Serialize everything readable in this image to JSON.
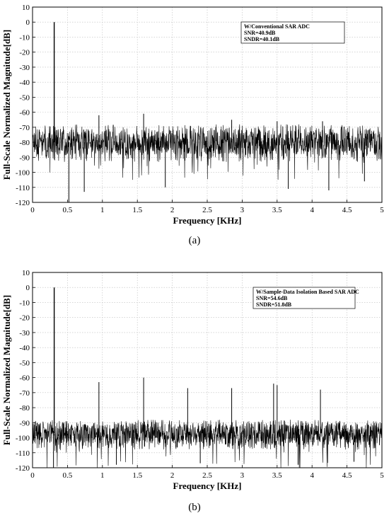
{
  "panels": [
    {
      "caption": "(a)",
      "legend_lines": [
        "W/Conventional SAR ADC",
        "SNR=40.9dB",
        "SNDR=40.1dB"
      ],
      "chart_data": {
        "type": "line",
        "xlabel": "Frequency [KHz]",
        "ylabel": "Full-Scale Normalized Magnitude[dB]",
        "xlim": [
          0,
          5
        ],
        "ylim": [
          -120,
          10
        ],
        "xticks": [
          0,
          0.5,
          1,
          1.5,
          2,
          2.5,
          3,
          3.5,
          4,
          4.5,
          5
        ],
        "yticks": [
          10,
          0,
          -10,
          -20,
          -30,
          -40,
          -50,
          -60,
          -70,
          -80,
          -90,
          -100,
          -110,
          -120
        ],
        "grid": true,
        "legend_position": "top-right",
        "noise_floor_db": -80,
        "noise_band_db": [
          -93,
          -68
        ],
        "spurs": [
          {
            "x": 0.31,
            "y": 0
          },
          {
            "x": 0.95,
            "y": -62
          },
          {
            "x": 1.59,
            "y": -61
          },
          {
            "x": 2.85,
            "y": -65
          },
          {
            "x": 3.5,
            "y": -66
          },
          {
            "x": 4.15,
            "y": -66
          }
        ],
        "dips": [
          {
            "x": 0.52,
            "y": -120
          },
          {
            "x": 0.74,
            "y": -113
          },
          {
            "x": 1.9,
            "y": -110
          },
          {
            "x": 3.66,
            "y": -111
          },
          {
            "x": 4.24,
            "y": -112
          },
          {
            "x": 4.75,
            "y": -106
          }
        ]
      }
    },
    {
      "caption": "(b)",
      "legend_lines": [
        "W/Sample-Data Isolation Based SAR ADC",
        "SNR=54.6dB",
        "SNDR=51.8dB"
      ],
      "chart_data": {
        "type": "line",
        "xlabel": "Frequency [KHz]",
        "ylabel": "Full-Scale Normalized Magnitude[dB]",
        "xlim": [
          0,
          5
        ],
        "ylim": [
          -120,
          10
        ],
        "xticks": [
          0,
          0.5,
          1,
          1.5,
          2,
          2.5,
          3,
          3.5,
          4,
          4.5,
          5
        ],
        "yticks": [
          10,
          0,
          -10,
          -20,
          -30,
          -40,
          -50,
          -60,
          -70,
          -80,
          -90,
          -100,
          -110,
          -120
        ],
        "grid": true,
        "legend_position": "top-right",
        "noise_floor_db": -97,
        "noise_band_db": [
          -108,
          -88
        ],
        "spurs": [
          {
            "x": 0.31,
            "y": 0
          },
          {
            "x": 0.95,
            "y": -63
          },
          {
            "x": 1.59,
            "y": -60
          },
          {
            "x": 2.22,
            "y": -67
          },
          {
            "x": 2.85,
            "y": -67
          },
          {
            "x": 3.45,
            "y": -64
          },
          {
            "x": 3.5,
            "y": -65
          },
          {
            "x": 4.12,
            "y": -68
          }
        ],
        "dips": [
          {
            "x": 0.3,
            "y": -120
          },
          {
            "x": 1.2,
            "y": -118
          },
          {
            "x": 2.4,
            "y": -117
          },
          {
            "x": 3.8,
            "y": -118
          },
          {
            "x": 4.6,
            "y": -116
          }
        ]
      }
    }
  ]
}
